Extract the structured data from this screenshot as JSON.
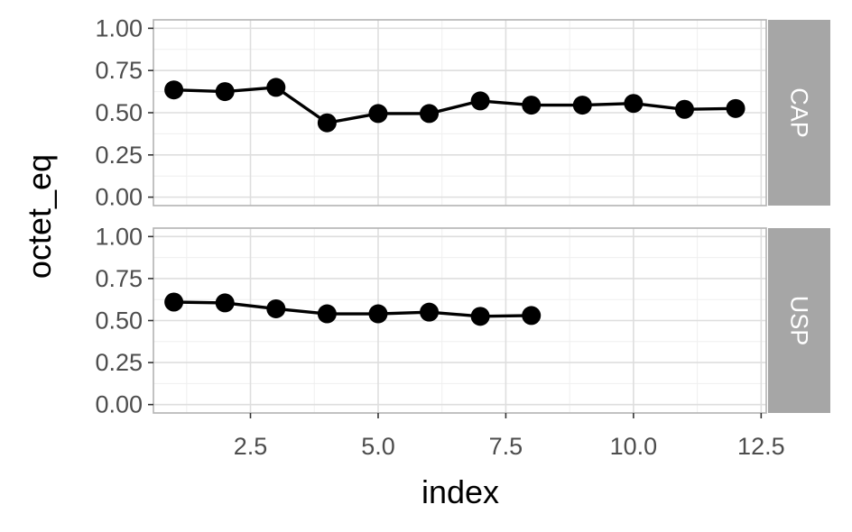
{
  "chart_data": {
    "type": "line",
    "xlabel": "index",
    "ylabel": "octet_eq",
    "xlim": [
      0.6,
      12.6
    ],
    "ylim": [
      -0.05,
      1.05
    ],
    "x_ticks": [
      2.5,
      5.0,
      7.5,
      10.0,
      12.5
    ],
    "x_tick_labels": [
      "2.5",
      "5.0",
      "7.5",
      "10.0",
      "12.5"
    ],
    "y_ticks": [
      0,
      0.25,
      0.5,
      0.75,
      1.0
    ],
    "y_tick_labels": [
      "0.00",
      "0.25",
      "0.50",
      "0.75",
      "1.00"
    ],
    "grid": true,
    "facets": [
      {
        "label": "CAP",
        "x": [
          1,
          2,
          3,
          4,
          5,
          6,
          7,
          8,
          9,
          10,
          11,
          12
        ],
        "y": [
          0.635,
          0.625,
          0.65,
          0.44,
          0.495,
          0.495,
          0.57,
          0.545,
          0.545,
          0.555,
          0.52,
          0.525
        ]
      },
      {
        "label": "USP",
        "x": [
          1,
          2,
          3,
          4,
          5,
          6,
          7,
          8
        ],
        "y": [
          0.61,
          0.605,
          0.57,
          0.54,
          0.54,
          0.55,
          0.525,
          0.53
        ]
      }
    ],
    "colors": {
      "line": "#000000",
      "point": "#000000",
      "strip": "#a6a6a6",
      "strip_text": "#ffffff",
      "grid_major": "#dedede",
      "grid_minor": "#efefef",
      "panel_border": "#b3b3b3"
    }
  }
}
